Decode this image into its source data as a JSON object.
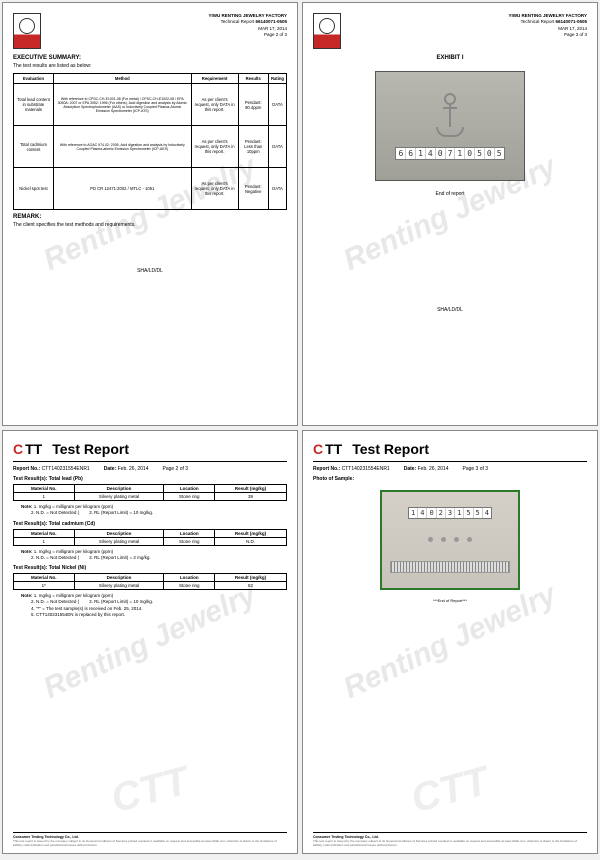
{
  "watermark": "Renting Jewelry",
  "p1": {
    "factory": "YIWU RENTING JEWELRY FACTORY",
    "report_label": "Technical Report",
    "report_no": "66140071-0505",
    "date": "MAR 17, 2014",
    "page": "Page 2 of 3",
    "exec_title": "EXECUTIVE SUMMARY:",
    "exec_sub": "The test results are listed as below:",
    "headers": [
      "Evaluation",
      "Method",
      "Requirement",
      "Results",
      "Rating"
    ],
    "rows": [
      {
        "eval": "Total lead content in substrate materials",
        "method": "With reference to CPSC-CH-E1001-08 (For metal) / CPSC-CH-E1002-08 / EPA 3050A: 2007 or EPA 3052: 1996 (For others), Acid digestion and analysis by Atomic Absorption Spectrophotometer (AAS) or Inductively Coupled Plasma-Atomic Emission Spectrometer (ICP-ATS)",
        "req": "As per client's request, only DATA in this report.",
        "res": "Pendant: 90.4ppm",
        "rate": "DATA"
      },
      {
        "eval": "Total cadmium content",
        "method": "With reference to AOAC 974.02: 2005, Acid digestion and analysis by Inductively Coupled Plasma-atomic Emission Spectrometer (ICP-AES)",
        "req": "As per client's request, only DATA in this report.",
        "res": "Pendant: Less than 10ppm",
        "rate": "DATA"
      },
      {
        "eval": "Nickel spot test",
        "method": "PD CR 12471:2002 / MTLC - 1051",
        "req": "As per client's request, only DATA in this report.",
        "res": "Pendant: Negative",
        "rate": "DATA"
      }
    ],
    "remark_title": "REMARK:",
    "remark_text": "The client specifies the test methods and requirements.",
    "initials": "SHA/LD/DL"
  },
  "p2": {
    "factory": "YIWU RENTING JEWELRY FACTORY",
    "report_label": "Technical Report",
    "report_no": "66140071-0505",
    "date": "MAR 17, 2014",
    "page": "Page 3 of 3",
    "exhibit": "EXHIBIT I",
    "sample_no": "66140710505",
    "end": "End of report",
    "initials": "SHA/LD/DL"
  },
  "p3": {
    "title": "Test Report",
    "report_no_label": "Report No.:",
    "report_no": "CTT140231554ENR1",
    "date_label": "Date:",
    "date": "Feb. 26, 2014",
    "page": "Page 2 of 3",
    "sections": [
      {
        "title": "Test Result(s): Total lead (Pb)",
        "headers": [
          "Material No.",
          "Description",
          "Location",
          "Result (mg/kg)"
        ],
        "row": [
          "1",
          "Silvery plating metal",
          "Stone ring",
          "39"
        ],
        "notes": [
          "mg/kg = milligram per kilogram (ppm)",
          "N.D. = Not Detected (<RL)",
          "RL (Report Limit) = 10 mg/kg."
        ]
      },
      {
        "title": "Test Result(s): Total cadmium (Cd)",
        "headers": [
          "Material No.",
          "Description",
          "Location",
          "Result (mg/kg)"
        ],
        "row": [
          "1",
          "Silvery plating metal",
          "Stone ring",
          "N.D."
        ],
        "notes": [
          "mg/kg = milligram per kilogram (ppm)",
          "N.D. = Not Detected (<RL)",
          "RL (Report Limit) = 2 mg/kg."
        ]
      },
      {
        "title": "Test Result(s): Total Nickel (Ni)",
        "headers": [
          "Material No.",
          "Description",
          "Location",
          "Result (mg/kg)"
        ],
        "row": [
          "1*",
          "Silvery plating metal",
          "Stone ring",
          "82"
        ],
        "notes": [
          "mg/kg = milligram per kilogram (ppm)",
          "N.D. = Not Detected (<RL)",
          "RL (Report Limit) = 10 mg/kg.",
          "\"*\" = The test sample(s) is received on Feb. 25, 2014.",
          "CTT140231554EN is replaced by this report."
        ]
      }
    ],
    "footer": "Consumer Testing Technology Co., Ltd."
  },
  "p4": {
    "title": "Test Report",
    "report_no_label": "Report No.:",
    "report_no": "CTT140231554ENR1",
    "date_label": "Date:",
    "date": "Feb. 26, 2014",
    "page": "Page 3 of 3",
    "photo_label": "Photo of Sample:",
    "sample_no": "140231554",
    "end": "***End of Report***",
    "footer": "Consumer Testing Technology Co., Ltd."
  }
}
